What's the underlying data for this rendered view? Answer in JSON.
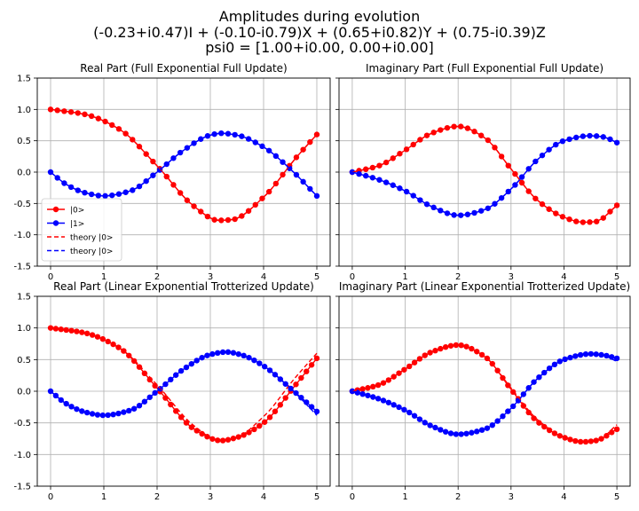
{
  "figure": {
    "suptitle_lines": [
      "Amplitudes during evolution",
      "(-0.23+i0.47)I + (-0.10-i0.79)X + (0.65+i0.82)Y + (0.75-i0.39)Z",
      "psi0 = [1.00+i0.00, 0.00+i0.00]"
    ]
  },
  "colors": {
    "state0": "#ff0000",
    "state1": "#0000ff",
    "grid": "#b0b0b0"
  },
  "chart_data": [
    {
      "type": "line",
      "title": "Real Part (Full Exponential Full Update)",
      "xlim": [
        -0.25,
        5.25
      ],
      "ylim": [
        -1.5,
        1.5
      ],
      "xticks": [
        0,
        1,
        2,
        3,
        4,
        5
      ],
      "yticks": [
        -1.5,
        -1.0,
        -0.5,
        0.0,
        0.5,
        1.0,
        1.5
      ],
      "show_y_tick_labels": true,
      "grid": true,
      "legend": {
        "placement": "lower-left",
        "entries": [
          "|0>",
          "|1>",
          "theory |0>",
          "theory |0>"
        ]
      },
      "series": [
        {
          "name": "|0>",
          "style": "markers",
          "color": "red",
          "t_end": 5,
          "n": 40,
          "points": [
            [
              0,
              1.0
            ],
            [
              0.65,
              0.92
            ],
            [
              1.3,
              0.68
            ],
            [
              2.0,
              0.1
            ],
            [
              2.7,
              -0.55
            ],
            [
              3.15,
              -0.77
            ],
            [
              3.4,
              -0.76
            ],
            [
              4.0,
              -0.4
            ],
            [
              4.6,
              0.22
            ],
            [
              5.0,
              0.6
            ]
          ]
        },
        {
          "name": "|1>",
          "style": "markers",
          "color": "blue",
          "t_end": 5,
          "n": 40,
          "points": [
            [
              0,
              0.0
            ],
            [
              0.3,
              -0.2
            ],
            [
              0.65,
              -0.33
            ],
            [
              1.0,
              -0.38
            ],
            [
              1.5,
              -0.3
            ],
            [
              2.0,
              0.0
            ],
            [
              2.5,
              0.35
            ],
            [
              3.0,
              0.59
            ],
            [
              3.2,
              0.62
            ],
            [
              3.5,
              0.59
            ],
            [
              4.0,
              0.4
            ],
            [
              4.5,
              0.05
            ],
            [
              5.0,
              -0.38
            ]
          ]
        },
        {
          "name": "theory |0>",
          "style": "dashed",
          "color": "red",
          "t_end": 5,
          "n": 60,
          "points": [
            [
              0,
              1.0
            ],
            [
              0.65,
              0.92
            ],
            [
              1.3,
              0.68
            ],
            [
              2.0,
              0.1
            ],
            [
              2.7,
              -0.55
            ],
            [
              3.15,
              -0.77
            ],
            [
              3.4,
              -0.76
            ],
            [
              4.0,
              -0.4
            ],
            [
              4.6,
              0.22
            ],
            [
              5.0,
              0.6
            ]
          ]
        },
        {
          "name": "theory |0>",
          "style": "dashed",
          "color": "blue",
          "t_end": 5,
          "n": 60,
          "points": [
            [
              0,
              0.0
            ],
            [
              0.3,
              -0.2
            ],
            [
              0.65,
              -0.33
            ],
            [
              1.0,
              -0.38
            ],
            [
              1.5,
              -0.3
            ],
            [
              2.0,
              0.0
            ],
            [
              2.5,
              0.35
            ],
            [
              3.0,
              0.59
            ],
            [
              3.2,
              0.62
            ],
            [
              3.5,
              0.59
            ],
            [
              4.0,
              0.4
            ],
            [
              4.5,
              0.05
            ],
            [
              5.0,
              -0.38
            ]
          ]
        }
      ]
    },
    {
      "type": "line",
      "title": "Imaginary Part (Full Exponential Full Update)",
      "xlim": [
        -0.25,
        5.25
      ],
      "ylim": [
        -1.5,
        1.5
      ],
      "xticks": [
        0,
        1,
        2,
        3,
        4,
        5
      ],
      "yticks": [
        -1.5,
        -1.0,
        -0.5,
        0.0,
        0.5,
        1.0,
        1.5
      ],
      "show_y_tick_labels": false,
      "grid": true,
      "series": [
        {
          "name": "|0>",
          "style": "markers",
          "color": "red",
          "t_end": 5,
          "n": 40,
          "points": [
            [
              0,
              0.0
            ],
            [
              0.5,
              0.1
            ],
            [
              1.0,
              0.35
            ],
            [
              1.5,
              0.62
            ],
            [
              2.0,
              0.73
            ],
            [
              2.5,
              0.55
            ],
            [
              3.0,
              0.05
            ],
            [
              3.5,
              -0.45
            ],
            [
              4.0,
              -0.72
            ],
            [
              4.35,
              -0.8
            ],
            [
              4.6,
              -0.79
            ],
            [
              5.0,
              -0.53
            ]
          ]
        },
        {
          "name": "|1>",
          "style": "markers",
          "color": "blue",
          "t_end": 5,
          "n": 40,
          "points": [
            [
              0,
              0.0
            ],
            [
              0.5,
              -0.12
            ],
            [
              1.0,
              -0.3
            ],
            [
              1.5,
              -0.55
            ],
            [
              2.0,
              -0.69
            ],
            [
              2.5,
              -0.6
            ],
            [
              3.0,
              -0.27
            ],
            [
              3.5,
              0.2
            ],
            [
              4.0,
              0.5
            ],
            [
              4.5,
              0.58
            ],
            [
              4.75,
              0.56
            ],
            [
              5.0,
              0.47
            ]
          ]
        },
        {
          "name": "theory |0>",
          "style": "dashed",
          "color": "red",
          "t_end": 5,
          "n": 60,
          "points": [
            [
              0,
              0.0
            ],
            [
              0.5,
              0.1
            ],
            [
              1.0,
              0.35
            ],
            [
              1.5,
              0.62
            ],
            [
              2.0,
              0.73
            ],
            [
              2.5,
              0.55
            ],
            [
              3.0,
              0.05
            ],
            [
              3.5,
              -0.45
            ],
            [
              4.0,
              -0.72
            ],
            [
              4.35,
              -0.8
            ],
            [
              4.6,
              -0.79
            ],
            [
              5.0,
              -0.53
            ]
          ]
        },
        {
          "name": "theory |0>",
          "style": "dashed",
          "color": "blue",
          "t_end": 5,
          "n": 60,
          "points": [
            [
              0,
              0.0
            ],
            [
              0.5,
              -0.12
            ],
            [
              1.0,
              -0.3
            ],
            [
              1.5,
              -0.55
            ],
            [
              2.0,
              -0.69
            ],
            [
              2.5,
              -0.6
            ],
            [
              3.0,
              -0.27
            ],
            [
              3.5,
              0.2
            ],
            [
              4.0,
              0.5
            ],
            [
              4.5,
              0.58
            ],
            [
              4.75,
              0.56
            ],
            [
              5.0,
              0.47
            ]
          ]
        }
      ]
    },
    {
      "type": "line",
      "title": "Real Part (Linear Exponential Trotterized Update)",
      "xlim": [
        -0.25,
        5.25
      ],
      "ylim": [
        -1.5,
        1.5
      ],
      "xticks": [
        0,
        1,
        2,
        3,
        4,
        5
      ],
      "yticks": [
        -1.5,
        -1.0,
        -0.5,
        0.0,
        0.5,
        1.0,
        1.5
      ],
      "show_y_tick_labels": true,
      "grid": true,
      "series": [
        {
          "name": "|0>",
          "style": "markers",
          "color": "red",
          "t_end": 5,
          "n": 52,
          "points": [
            [
              0,
              1.0
            ],
            [
              0.65,
              0.92
            ],
            [
              1.3,
              0.68
            ],
            [
              2.0,
              0.05
            ],
            [
              2.7,
              -0.6
            ],
            [
              3.2,
              -0.78
            ],
            [
              3.5,
              -0.73
            ],
            [
              4.0,
              -0.5
            ],
            [
              4.6,
              0.1
            ],
            [
              5.0,
              0.52
            ]
          ]
        },
        {
          "name": "|1>",
          "style": "markers",
          "color": "blue",
          "t_end": 5,
          "n": 52,
          "points": [
            [
              0,
              0.0
            ],
            [
              0.3,
              -0.2
            ],
            [
              0.65,
              -0.33
            ],
            [
              1.0,
              -0.38
            ],
            [
              1.5,
              -0.3
            ],
            [
              2.0,
              0.0
            ],
            [
              2.5,
              0.35
            ],
            [
              3.0,
              0.58
            ],
            [
              3.3,
              0.62
            ],
            [
              3.6,
              0.57
            ],
            [
              4.0,
              0.4
            ],
            [
              4.5,
              0.05
            ],
            [
              5.0,
              -0.32
            ]
          ]
        },
        {
          "name": "theory |0>",
          "style": "dashed",
          "color": "red",
          "t_end": 5,
          "n": 60,
          "points": [
            [
              0,
              1.0
            ],
            [
              0.65,
              0.92
            ],
            [
              1.3,
              0.68
            ],
            [
              2.0,
              0.1
            ],
            [
              2.7,
              -0.55
            ],
            [
              3.15,
              -0.77
            ],
            [
              3.4,
              -0.76
            ],
            [
              4.0,
              -0.4
            ],
            [
              4.6,
              0.22
            ],
            [
              5.0,
              0.6
            ]
          ]
        },
        {
          "name": "theory |0>",
          "style": "dashed",
          "color": "blue",
          "t_end": 5,
          "n": 60,
          "points": [
            [
              0,
              0.0
            ],
            [
              0.3,
              -0.2
            ],
            [
              0.65,
              -0.33
            ],
            [
              1.0,
              -0.38
            ],
            [
              1.5,
              -0.3
            ],
            [
              2.0,
              0.0
            ],
            [
              2.5,
              0.35
            ],
            [
              3.0,
              0.59
            ],
            [
              3.2,
              0.62
            ],
            [
              3.5,
              0.59
            ],
            [
              4.0,
              0.4
            ],
            [
              4.5,
              0.05
            ],
            [
              5.0,
              -0.38
            ]
          ]
        }
      ]
    },
    {
      "type": "line",
      "title": "Imaginary Part (Linear Exponential Trotterized Update)",
      "xlim": [
        -0.25,
        5.25
      ],
      "ylim": [
        -1.5,
        1.5
      ],
      "xticks": [
        0,
        1,
        2,
        3,
        4,
        5
      ],
      "yticks": [
        -1.5,
        -1.0,
        -0.5,
        0.0,
        0.5,
        1.0,
        1.5
      ],
      "show_y_tick_labels": false,
      "grid": true,
      "series": [
        {
          "name": "|0>",
          "style": "markers",
          "color": "red",
          "t_end": 5,
          "n": 52,
          "points": [
            [
              0,
              0.0
            ],
            [
              0.5,
              0.1
            ],
            [
              1.0,
              0.35
            ],
            [
              1.5,
              0.62
            ],
            [
              2.0,
              0.73
            ],
            [
              2.5,
              0.55
            ],
            [
              3.0,
              0.03
            ],
            [
              3.5,
              -0.48
            ],
            [
              4.0,
              -0.73
            ],
            [
              4.35,
              -0.8
            ],
            [
              4.6,
              -0.78
            ],
            [
              5.0,
              -0.6
            ]
          ]
        },
        {
          "name": "|1>",
          "style": "markers",
          "color": "blue",
          "t_end": 5,
          "n": 52,
          "points": [
            [
              0,
              0.0
            ],
            [
              0.5,
              -0.12
            ],
            [
              1.0,
              -0.3
            ],
            [
              1.5,
              -0.55
            ],
            [
              2.0,
              -0.68
            ],
            [
              2.5,
              -0.6
            ],
            [
              3.0,
              -0.27
            ],
            [
              3.5,
              0.2
            ],
            [
              4.0,
              0.5
            ],
            [
              4.5,
              0.59
            ],
            [
              4.75,
              0.57
            ],
            [
              5.0,
              0.52
            ]
          ]
        },
        {
          "name": "theory |0>",
          "style": "dashed",
          "color": "red",
          "t_end": 5,
          "n": 60,
          "points": [
            [
              0,
              0.0
            ],
            [
              0.5,
              0.1
            ],
            [
              1.0,
              0.35
            ],
            [
              1.5,
              0.62
            ],
            [
              2.0,
              0.73
            ],
            [
              2.5,
              0.55
            ],
            [
              3.0,
              0.05
            ],
            [
              3.5,
              -0.45
            ],
            [
              4.0,
              -0.72
            ],
            [
              4.35,
              -0.8
            ],
            [
              4.6,
              -0.79
            ],
            [
              5.0,
              -0.53
            ]
          ]
        },
        {
          "name": "theory |0>",
          "style": "dashed",
          "color": "blue",
          "t_end": 5,
          "n": 60,
          "points": [
            [
              0,
              0.0
            ],
            [
              0.5,
              -0.12
            ],
            [
              1.0,
              -0.3
            ],
            [
              1.5,
              -0.55
            ],
            [
              2.0,
              -0.69
            ],
            [
              2.5,
              -0.6
            ],
            [
              3.0,
              -0.27
            ],
            [
              3.5,
              0.2
            ],
            [
              4.0,
              0.5
            ],
            [
              4.5,
              0.58
            ],
            [
              4.75,
              0.56
            ],
            [
              5.0,
              0.47
            ]
          ]
        }
      ]
    }
  ]
}
